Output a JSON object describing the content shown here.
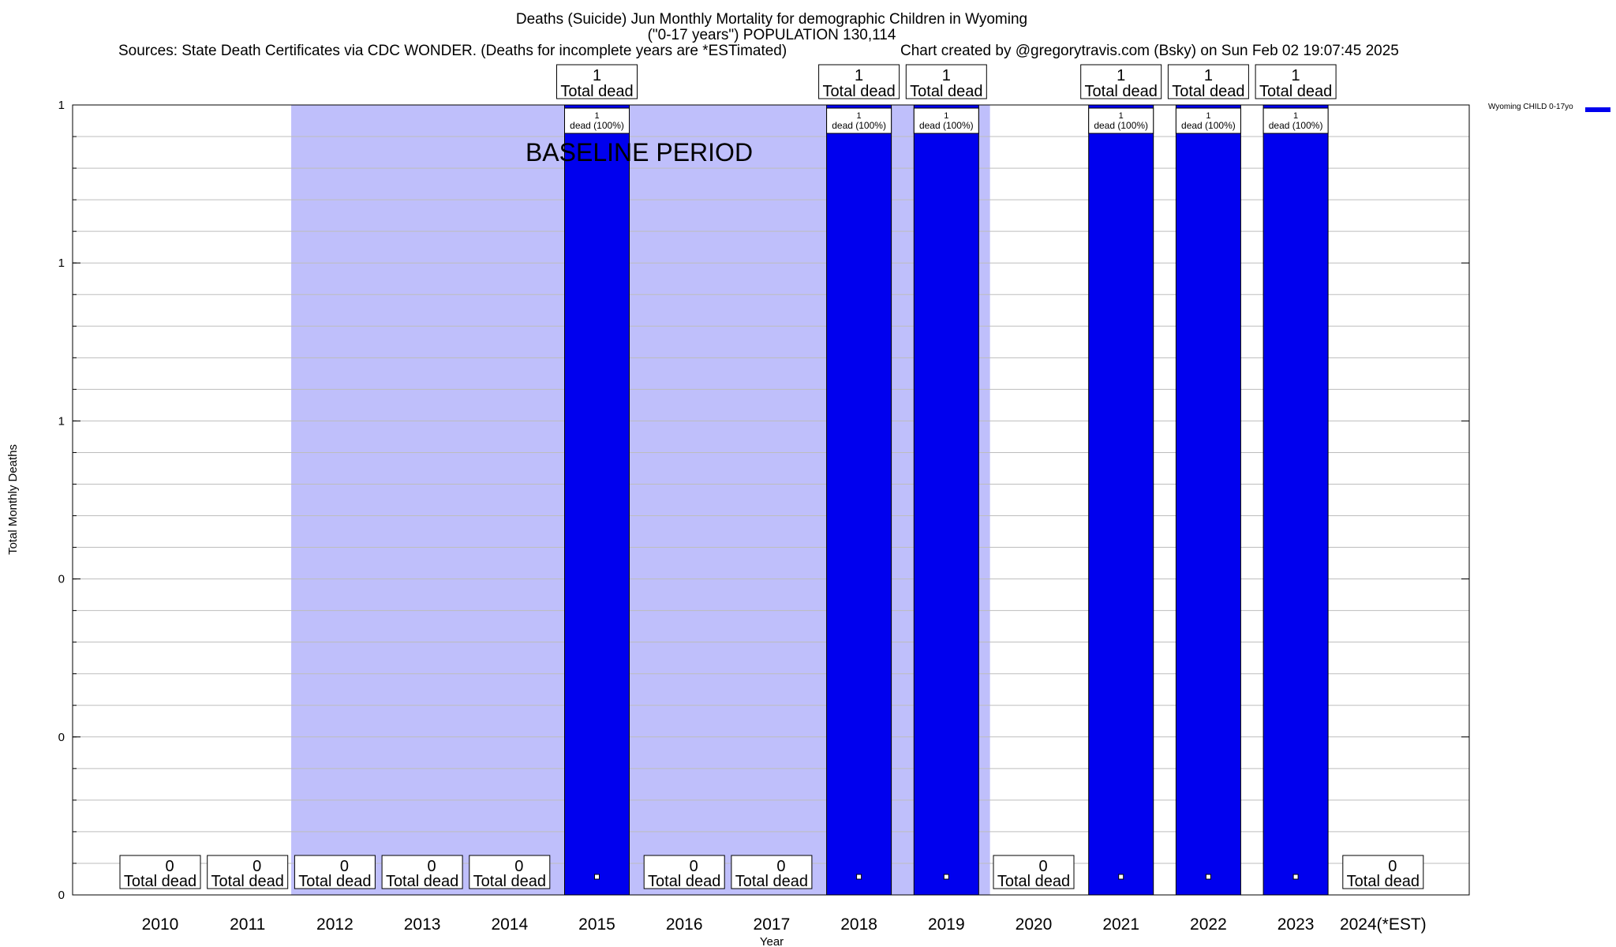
{
  "header": {
    "title_line1": "Deaths (Suicide) Jun Monthly Mortality for demographic Children in Wyoming",
    "title_line2": "(\"0-17 years\") POPULATION 130,114",
    "sources": "Sources: State Death Certificates via CDC WONDER. (Deaths for incomplete years are *ESTimated)",
    "credit": "Chart created by @gregorytravis.com (Bsky) on Sun Feb 02 19:07:45 2025"
  },
  "chart_data": {
    "type": "bar",
    "title": "Deaths (Suicide) Jun Monthly Mortality for demographic Children in Wyoming",
    "subtitle": "(\"0-17 years\") POPULATION 130,114",
    "xlabel": "Year",
    "ylabel": "Total Monthly Deaths",
    "categories": [
      "2010",
      "2011",
      "2012",
      "2013",
      "2014",
      "2015",
      "2016",
      "2017",
      "2018",
      "2019",
      "2020",
      "2021",
      "2022",
      "2023",
      "2024(*EST)"
    ],
    "series": [
      {
        "name": "Wyoming CHILD 0-17yo",
        "values": [
          0,
          0,
          0,
          0,
          0,
          1,
          0,
          0,
          1,
          1,
          0,
          1,
          1,
          1,
          0
        ],
        "color": "#0000ee"
      }
    ],
    "ylim": [
      0,
      1
    ],
    "ytick_labels": [
      "0",
      "0",
      "0",
      "1",
      "1",
      "1"
    ],
    "total_label_text": "Total dead",
    "inner_label_text": "dead (100%)",
    "baseline_label": "BASELINE PERIOD",
    "baseline_range": [
      "2012",
      "2019"
    ],
    "baseline_color": "#bfbffb",
    "grid": true,
    "legend_position": "top-right"
  }
}
